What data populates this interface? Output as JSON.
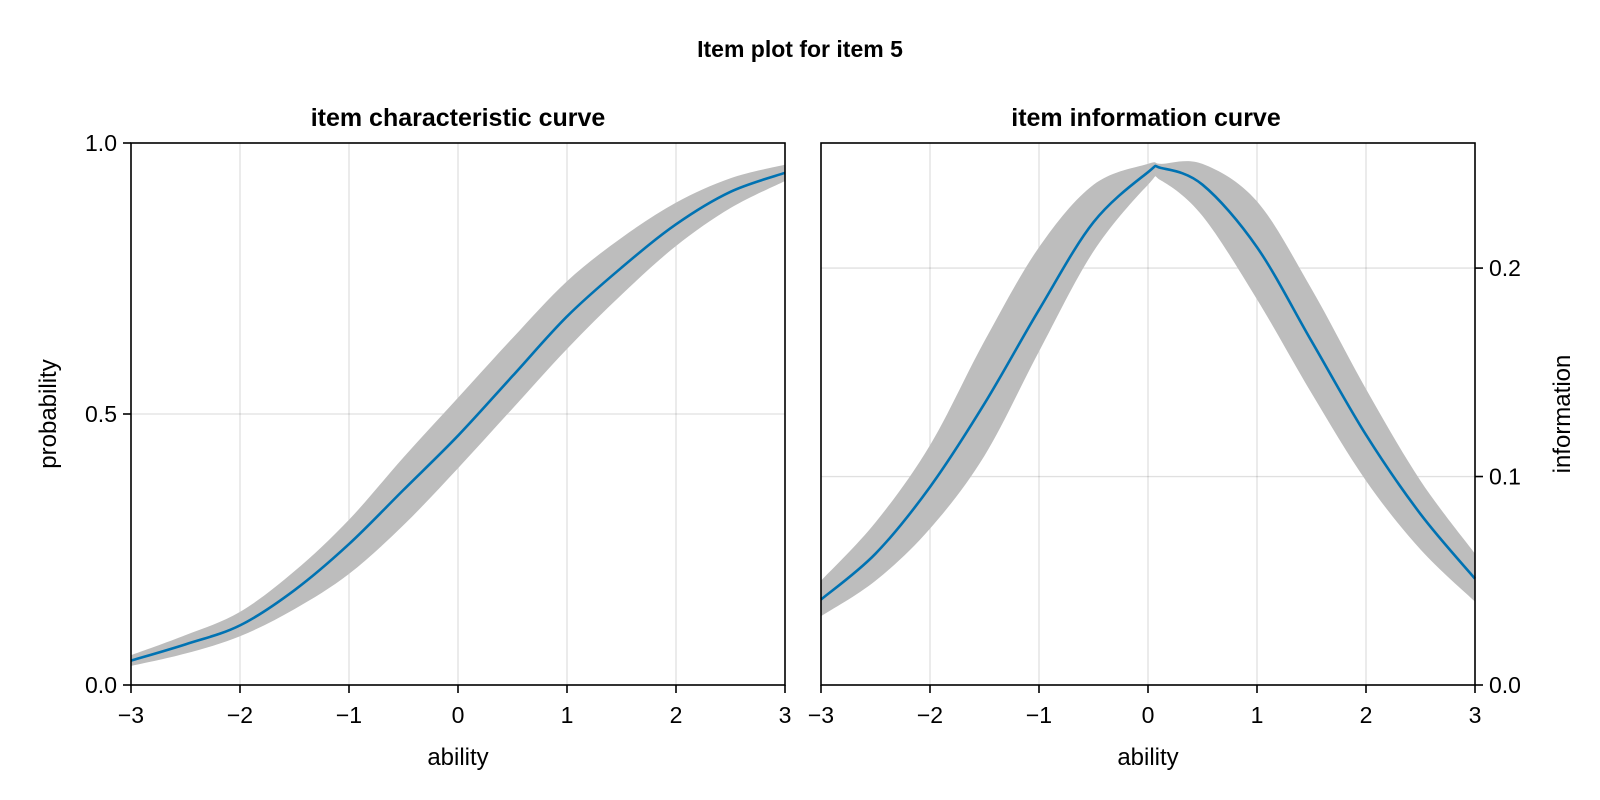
{
  "figure": {
    "title": "Item plot for item 5"
  },
  "chart_data": [
    {
      "type": "line",
      "title": "item characteristic curve",
      "xlabel": "ability",
      "ylabel": "probability",
      "xlim": [
        -3,
        3
      ],
      "ylim": [
        0,
        1
      ],
      "xticks": [
        -3,
        -2,
        -1,
        0,
        1,
        2,
        3
      ],
      "xtick_labels": [
        "−3",
        "−2",
        "−1",
        "0",
        "1",
        "2",
        "3"
      ],
      "yticks": [
        0,
        0.5,
        1
      ],
      "ytick_labels": [
        "0.0",
        "0.5",
        "1.0"
      ],
      "ylabel_side": "left",
      "grid": true,
      "series_color": "#0072b2",
      "band_color": "#bdbdbd",
      "x": [
        -3,
        -2.5,
        -2,
        -1.5,
        -1,
        -0.5,
        0,
        0.5,
        1,
        1.5,
        2,
        2.5,
        3
      ],
      "y": [
        0.045,
        0.075,
        0.11,
        0.175,
        0.26,
        0.36,
        0.46,
        0.57,
        0.68,
        0.77,
        0.85,
        0.91,
        0.945
      ],
      "y_lower": [
        0.035,
        0.058,
        0.09,
        0.14,
        0.205,
        0.295,
        0.4,
        0.51,
        0.62,
        0.72,
        0.81,
        0.88,
        0.93
      ],
      "y_upper": [
        0.055,
        0.092,
        0.135,
        0.21,
        0.305,
        0.42,
        0.53,
        0.64,
        0.745,
        0.825,
        0.89,
        0.935,
        0.96
      ]
    },
    {
      "type": "line",
      "title": "item information curve",
      "xlabel": "ability",
      "ylabel": "information",
      "xlim": [
        -3,
        3
      ],
      "ylim": [
        0,
        0.26
      ],
      "xticks": [
        -3,
        -2,
        -1,
        0,
        1,
        2,
        3
      ],
      "xtick_labels": [
        "−3",
        "−2",
        "−1",
        "0",
        "1",
        "2",
        "3"
      ],
      "yticks": [
        0,
        0.1,
        0.2
      ],
      "ytick_labels": [
        "0.0",
        "0.1",
        "0.2"
      ],
      "ylabel_side": "right",
      "grid": true,
      "series_color": "#0072b2",
      "band_color": "#bdbdbd",
      "x": [
        -3,
        -2.5,
        -2,
        -1.5,
        -1,
        -0.5,
        0,
        0.12,
        0.5,
        1,
        1.5,
        2,
        2.5,
        3
      ],
      "y": [
        0.041,
        0.063,
        0.095,
        0.135,
        0.18,
        0.222,
        0.246,
        0.248,
        0.24,
        0.21,
        0.165,
        0.12,
        0.082,
        0.051
      ],
      "y_lower": [
        0.033,
        0.05,
        0.075,
        0.11,
        0.16,
        0.208,
        0.24,
        0.242,
        0.225,
        0.185,
        0.14,
        0.098,
        0.065,
        0.04
      ],
      "y_upper": [
        0.05,
        0.078,
        0.115,
        0.165,
        0.21,
        0.24,
        0.25,
        0.25,
        0.25,
        0.232,
        0.19,
        0.142,
        0.098,
        0.063
      ]
    }
  ]
}
